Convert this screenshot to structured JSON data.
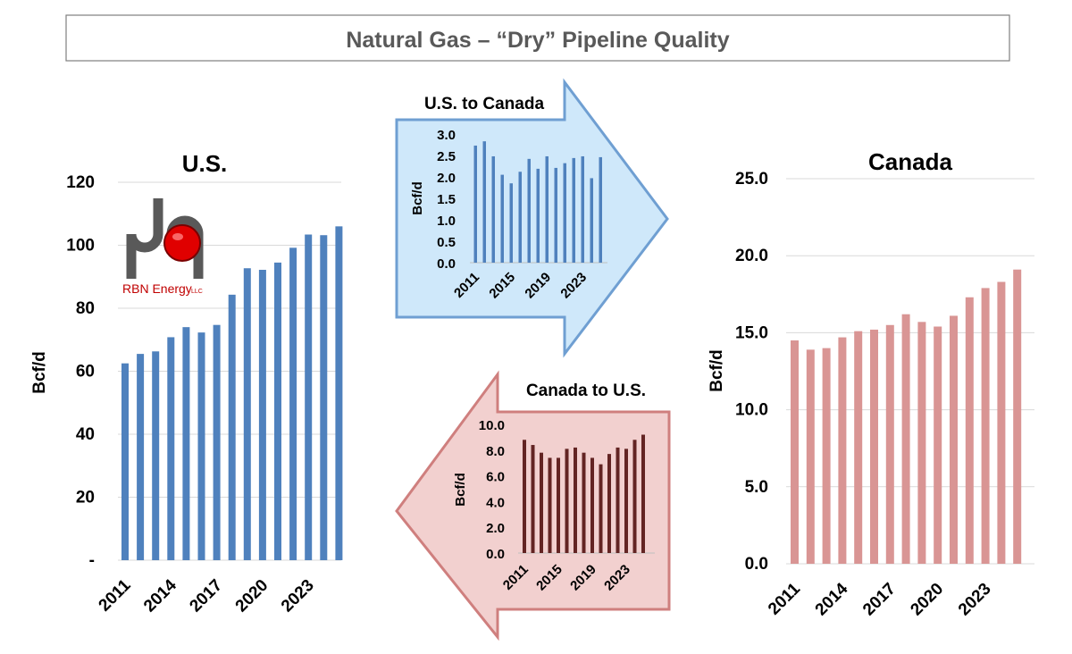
{
  "page_title": "Natural Gas – “Dry” Pipeline Quality",
  "logo": {
    "text": "RBN Energy",
    "suffix": "LLC"
  },
  "colors": {
    "us": "#4f81bd",
    "canada": "#d99594",
    "us_to_canada": "#4f81bd",
    "canada_to_us": "#632423",
    "arrow_blue_fill": "#cfe8fa",
    "arrow_blue_stroke": "#6f9fd2",
    "arrow_red_fill": "#f2d0cf",
    "arrow_red_stroke": "#cf7f7e"
  },
  "chart_data": [
    {
      "id": "us",
      "type": "bar",
      "title": "U.S.",
      "ylabel": "Bcf/d",
      "ylim": [
        0,
        120
      ],
      "yticks": [
        0,
        20,
        40,
        60,
        80,
        100,
        120
      ],
      "ytick_labels": [
        "-",
        "20",
        "40",
        "60",
        "80",
        "100",
        "120"
      ],
      "grid": true,
      "categories": [
        "2011",
        "2012",
        "2013",
        "2014",
        "2015",
        "2016",
        "2017",
        "2018",
        "2019",
        "2020",
        "2021",
        "2022",
        "2023",
        "2024",
        "2025"
      ],
      "xtick_labels": [
        "2011",
        "2014",
        "2017",
        "2020",
        "2023"
      ],
      "values": [
        62.5,
        65.5,
        66.3,
        70.8,
        74.0,
        72.3,
        74.7,
        84.3,
        92.7,
        92.2,
        94.5,
        99.2,
        103.4,
        103.2,
        106.0
      ]
    },
    {
      "id": "us_to_canada",
      "type": "bar",
      "title": "U.S. to Canada",
      "ylabel": "Bcf/d",
      "ylim": [
        0,
        3.0
      ],
      "yticks": [
        0,
        0.5,
        1.0,
        1.5,
        2.0,
        2.5,
        3.0
      ],
      "ytick_labels": [
        "0.0",
        "0.5",
        "1.0",
        "1.5",
        "2.0",
        "2.5",
        "3.0"
      ],
      "grid": false,
      "categories": [
        "2011",
        "2012",
        "2013",
        "2014",
        "2015",
        "2016",
        "2017",
        "2018",
        "2019",
        "2020",
        "2021",
        "2022",
        "2023",
        "2024",
        "2025"
      ],
      "xtick_labels": [
        "2011",
        "2015",
        "2019",
        "2023"
      ],
      "values": [
        2.73,
        2.83,
        2.48,
        2.05,
        1.85,
        2.12,
        2.42,
        2.19,
        2.48,
        2.21,
        2.32,
        2.44,
        2.48,
        1.97,
        2.46
      ]
    },
    {
      "id": "canada_to_us",
      "type": "bar",
      "title": "Canada to U.S.",
      "ylabel": "Bcf/d",
      "ylim": [
        0,
        10.0
      ],
      "yticks": [
        0,
        2,
        4,
        6,
        8,
        10
      ],
      "ytick_labels": [
        "0.0",
        "2.0",
        "4.0",
        "6.0",
        "8.0",
        "10.0"
      ],
      "grid": false,
      "categories": [
        "2011",
        "2012",
        "2013",
        "2014",
        "2015",
        "2016",
        "2017",
        "2018",
        "2019",
        "2020",
        "2021",
        "2022",
        "2023",
        "2024",
        "2025"
      ],
      "xtick_labels": [
        "2011",
        "2015",
        "2019",
        "2023"
      ],
      "values": [
        8.8,
        8.4,
        7.8,
        7.4,
        7.4,
        8.1,
        8.2,
        7.8,
        7.4,
        6.9,
        7.7,
        8.2,
        8.1,
        8.8,
        9.2
      ]
    },
    {
      "id": "canada",
      "type": "bar",
      "title": "Canada",
      "ylabel": "Bcf/d",
      "ylim": [
        0,
        25.0
      ],
      "yticks": [
        0,
        5,
        10,
        15,
        20,
        25
      ],
      "ytick_labels": [
        "0.0",
        "5.0",
        "10.0",
        "15.0",
        "20.0",
        "25.0"
      ],
      "grid": true,
      "categories": [
        "2011",
        "2012",
        "2013",
        "2014",
        "2015",
        "2016",
        "2017",
        "2018",
        "2019",
        "2020",
        "2021",
        "2022",
        "2023",
        "2024",
        "2025"
      ],
      "xtick_labels": [
        "2011",
        "2014",
        "2017",
        "2020",
        "2023"
      ],
      "values": [
        14.5,
        13.9,
        14.0,
        14.7,
        15.1,
        15.2,
        15.5,
        16.2,
        15.7,
        15.4,
        16.1,
        17.3,
        17.9,
        18.3,
        19.1
      ]
    }
  ]
}
